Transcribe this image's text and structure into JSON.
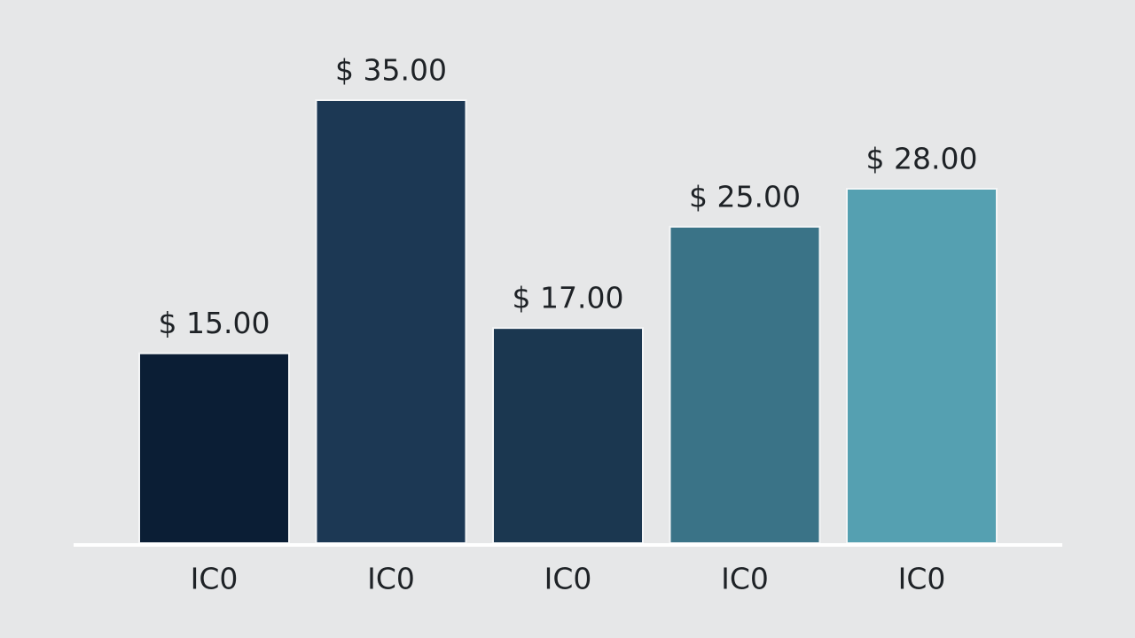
{
  "chart_data": {
    "type": "bar",
    "categories": [
      "IC0",
      "IC0",
      "IC0",
      "IC0",
      "IC0"
    ],
    "values": [
      15,
      35,
      17,
      25,
      28
    ],
    "value_labels": [
      "$ 15.00",
      "$ 35.00",
      "$ 17.00",
      "$ 25.00",
      "$ 28.00"
    ],
    "colors": [
      "#0b1e35",
      "#1c3854",
      "#1b3750",
      "#3a7387",
      "#55a0b1"
    ]
  }
}
